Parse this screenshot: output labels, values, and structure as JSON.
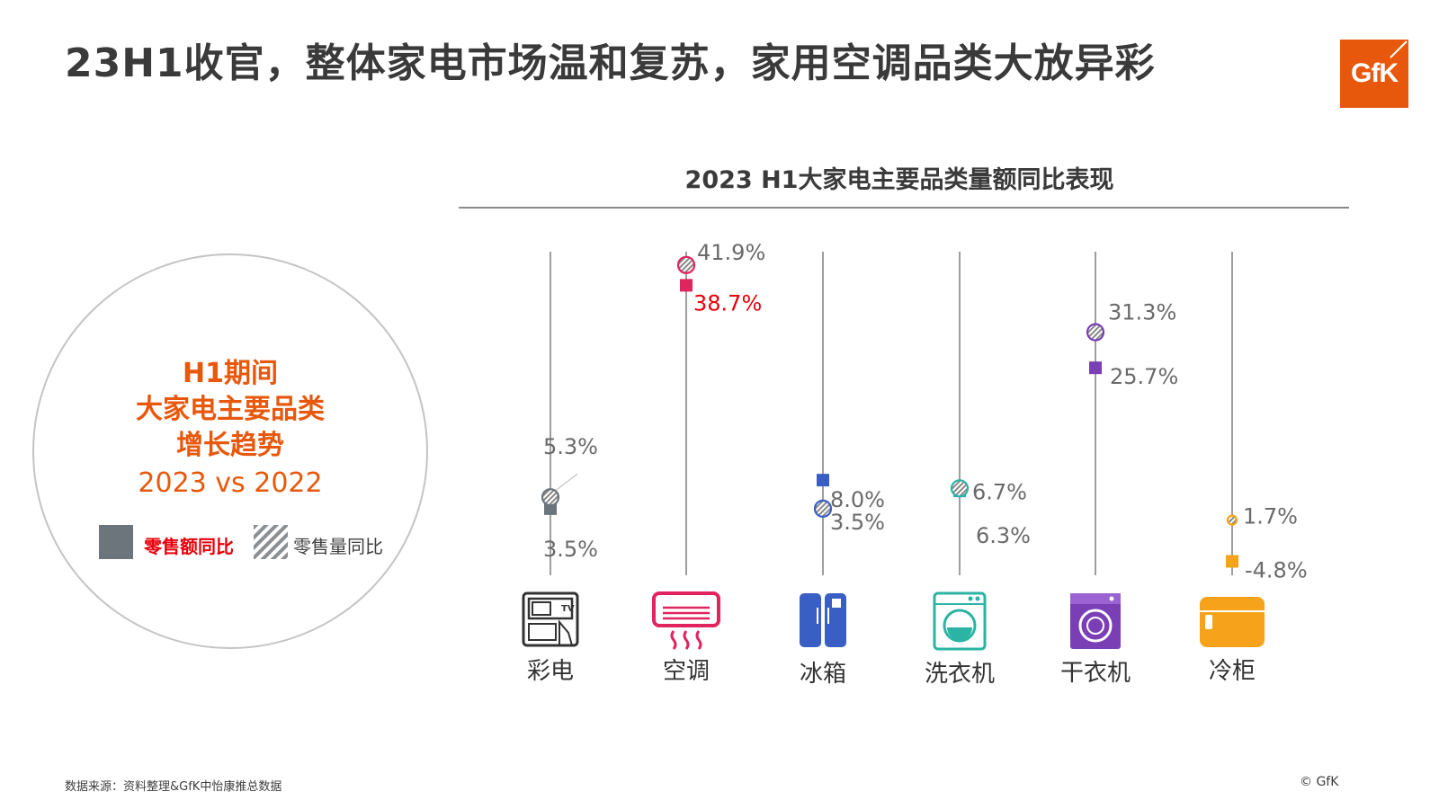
{
  "title": "23H1收官，整体家电市场温和复苏，家用空调品类大放异彩",
  "logo_text": "GfK",
  "panel": {
    "line1": "H1期间",
    "line2": "大家电主要品类",
    "line3": "增长趋势",
    "years": "2023 vs 2022",
    "legend_value": "零售额同比",
    "legend_volume": "零售量同比"
  },
  "footnote": "数据来源：资料整理&GfK中怡康推总数据",
  "copyright": "© GfK",
  "chart_data": {
    "type": "scatter",
    "title": "2023 H1大家电主要品类量额同比表现",
    "categories": [
      "彩电",
      "空调",
      "冰箱",
      "洗衣机",
      "干衣机",
      "冷柜"
    ],
    "series": [
      {
        "name": "零售额同比",
        "marker": "square",
        "values": [
          3.5,
          38.7,
          8.0,
          6.3,
          25.7,
          -4.8
        ],
        "labels": [
          "3.5%",
          "38.7%",
          "8.0%",
          "6.3%",
          "25.7%",
          "-4.8%"
        ]
      },
      {
        "name": "零售量同比",
        "marker": "hatched-circle",
        "values": [
          5.3,
          41.9,
          3.5,
          6.7,
          31.3,
          1.7
        ],
        "labels": [
          "5.3%",
          "41.9%",
          "3.5%",
          "6.7%",
          "31.3%",
          "1.7%"
        ]
      }
    ],
    "colors": [
      "#6d757c",
      "#e0245e",
      "#3a5fc4",
      "#2bb3a3",
      "#7b3fb5",
      "#f7a21b"
    ],
    "icons": [
      "tv-icon",
      "air-conditioner-icon",
      "fridge-icon",
      "washer-icon",
      "dryer-icon",
      "freezer-icon"
    ],
    "highlight_label_color": "#e8000b"
  }
}
